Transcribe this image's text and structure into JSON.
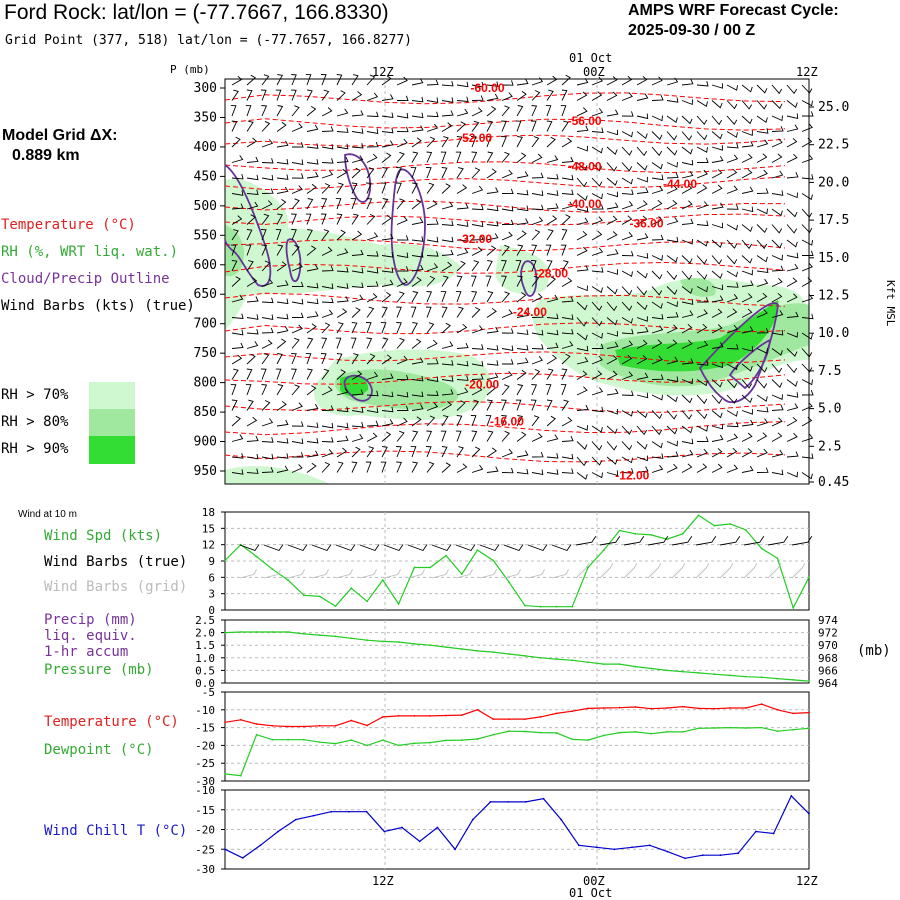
{
  "header": {
    "station_title": "Ford Rock:  lat/lon = (-77.7667, 166.8330)",
    "grid_point": "Grid Point (377, 518) lat/lon = (-77.7657, 166.8277)",
    "forecast_cycle_label": "AMPS WRF Forecast Cycle:",
    "forecast_cycle_value": "2025-09-30 / 00  Z"
  },
  "left_panel": {
    "model_grid_label": "Model Grid ΔX:",
    "model_grid_value": "0.889 km",
    "legend": {
      "temperature": "Temperature (°C)",
      "rh": "RH (%, WRT liq. wat.)",
      "cloud": "Cloud/Precip Outline",
      "wind_barbs": "Wind Barbs (kts) (true)"
    },
    "rh_key": [
      {
        "label": "RH > 70%",
        "color": "#d0f8d0"
      },
      {
        "label": "RH > 80%",
        "color": "#a0e8a0"
      },
      {
        "label": "RH > 90%",
        "color": "#33dd33"
      }
    ],
    "wind_10m_label": "Wind at 10 m",
    "wind_legend": {
      "spd": "Wind Spd (kts)",
      "barbs_true": "Wind Barbs (true)",
      "barbs_grid": "Wind Barbs (grid)"
    },
    "precip_legend": {
      "line1": "Precip (mm)",
      "line2": "liq. equiv.",
      "line3": "1-hr accum",
      "pressure": "Pressure (mb)"
    },
    "pressure_unit": "(mb)",
    "temp_legend": {
      "temperature": "Temperature (°C)",
      "dewpoint": "Dewpoint (°C)"
    },
    "windchill_legend": "Wind Chill T (°C)"
  },
  "colors": {
    "temperature": "#ff0000",
    "rh_line": "#22cc22",
    "cloud": "#663399",
    "wind_chill": "#0000cc",
    "left_green": "#33aa33",
    "left_purple": "#773399"
  },
  "time_axis": {
    "top_date": "01 Oct",
    "bottom_date": "01 Oct",
    "ticks": [
      "12Z",
      "00Z",
      "12Z"
    ]
  },
  "chart_data": [
    {
      "type": "area",
      "title": "Vertical cross-section",
      "ylabel": "P (mb)",
      "y2label": "Kft MSL",
      "pressure_ticks": [
        "300",
        "350",
        "400",
        "450",
        "500",
        "550",
        "600",
        "650",
        "700",
        "750",
        "800",
        "850",
        "900",
        "950"
      ],
      "kft_ticks": [
        "25.0",
        "22.5",
        "20.0",
        "17.5",
        "15.0",
        "12.5",
        "10.0",
        "7.5",
        "5.0",
        "2.5",
        "0.45"
      ],
      "isotherm_labels": [
        {
          "text": "-60.00",
          "hour": 17.8,
          "p": 300
        },
        {
          "text": "-56.00",
          "hour": 23.3,
          "p": 356
        },
        {
          "text": "-52.00",
          "hour": 17.1,
          "p": 385
        },
        {
          "text": "-48.00",
          "hour": 23.3,
          "p": 433
        },
        {
          "text": "-44.00",
          "hour": 28.7,
          "p": 463
        },
        {
          "text": "-40.00",
          "hour": 23.3,
          "p": 497
        },
        {
          "text": "-36.00",
          "hour": 26.8,
          "p": 530
        },
        {
          "text": "-32.00",
          "hour": 17.1,
          "p": 556
        },
        {
          "text": "-28.00",
          "hour": 21.4,
          "p": 615
        },
        {
          "text": "-24.00",
          "hour": 20.2,
          "p": 680
        },
        {
          "text": "-20.00",
          "hour": 17.5,
          "p": 803
        },
        {
          "text": "-16.00",
          "hour": 18.9,
          "p": 866
        },
        {
          "text": "-12.00",
          "hour": 26.0,
          "p": 958
        }
      ]
    },
    {
      "type": "line",
      "title": "Wind Spd (kts)",
      "ylim": [
        0,
        18
      ],
      "yticks": [
        "0",
        "3",
        "6",
        "9",
        "12",
        "15",
        "18"
      ],
      "series": [
        {
          "name": "Wind Spd",
          "values": [
            9.1,
            12,
            9.8,
            7.5,
            5.5,
            2.7,
            2.5,
            0.7,
            4,
            1.6,
            5.5,
            1.1,
            7.8,
            7.8,
            10,
            6.6,
            11,
            9.1,
            5.1,
            0.8,
            0.6,
            0.6,
            0.6,
            7.8,
            11,
            14.6,
            14,
            13.8,
            13,
            14,
            17.4,
            15.5,
            15.8,
            14.7,
            11.3,
            9.5,
            0.4,
            6
          ]
        }
      ]
    },
    {
      "type": "line",
      "title": "Precip / Pressure",
      "ylim": [
        0,
        2.5
      ],
      "yticks": [
        "0.0",
        "0.5",
        "1.0",
        "1.5",
        "2.0",
        "2.5"
      ],
      "y2ticks": [
        "974",
        "972",
        "970",
        "968",
        "966",
        "964"
      ],
      "series": [
        {
          "name": "Pressure (mb)",
          "values": [
            972,
            972.1,
            972.1,
            972.1,
            972.1,
            971.8,
            971.6,
            971.4,
            971.1,
            970.8,
            970.6,
            970.5,
            970.2,
            970,
            969.7,
            969.4,
            969.1,
            968.9,
            968.6,
            968.3,
            968,
            967.8,
            967.6,
            967.3,
            967,
            967,
            966.6,
            966.3,
            966,
            965.8,
            965.6,
            965.4,
            965.2,
            965,
            964.9,
            964.7,
            964.5,
            964.3
          ]
        }
      ]
    },
    {
      "type": "line",
      "title": "Temperature / Dewpoint",
      "ylim": [
        -30,
        -5
      ],
      "yticks": [
        "-5",
        "-10",
        "-15",
        "-20",
        "-25",
        "-30"
      ],
      "series": [
        {
          "name": "Temperature",
          "values": [
            -13.5,
            -12.8,
            -14,
            -14.5,
            -14.7,
            -14.7,
            -14.5,
            -14.5,
            -13,
            -14.4,
            -12,
            -11.7,
            -11.7,
            -11.7,
            -11.6,
            -11.5,
            -10,
            -12.6,
            -12.6,
            -12.6,
            -12,
            -11,
            -10.4,
            -9.6,
            -9.5,
            -9.4,
            -9.2,
            -9.7,
            -9.5,
            -9.1,
            -9.6,
            -9.7,
            -9.5,
            -9.5,
            -8.4,
            -10,
            -11,
            -10.8
          ]
        },
        {
          "name": "Dewpoint",
          "values": [
            -28,
            -28.5,
            -17,
            -18.4,
            -18.4,
            -18.4,
            -19.1,
            -19.5,
            -18.5,
            -20,
            -18.5,
            -20,
            -19.4,
            -19.2,
            -18.6,
            -18.5,
            -18.2,
            -17,
            -16,
            -16.1,
            -16.4,
            -16.5,
            -18.3,
            -18.5,
            -17.2,
            -16.4,
            -16.2,
            -16.7,
            -16.2,
            -16.2,
            -15.2,
            -15.1,
            -15,
            -15.1,
            -15,
            -16,
            -15.6,
            -15.2
          ]
        }
      ]
    },
    {
      "type": "line",
      "title": "Wind Chill T (°C)",
      "ylim": [
        -30,
        -10
      ],
      "yticks": [
        "-10",
        "-15",
        "-20",
        "-25",
        "-30"
      ],
      "series": [
        {
          "name": "Wind Chill",
          "values": [
            -25,
            -27.2,
            -24,
            -20.5,
            -17.5,
            -16.5,
            -15.5,
            -15.5,
            -15.5,
            -20.5,
            -19.5,
            -23,
            -19.5,
            -25,
            -17.5,
            -13,
            -13,
            -13,
            -12.2,
            -17.5,
            -24,
            -24.5,
            -25,
            -24.5,
            -24,
            -25.6,
            -27.3,
            -26.5,
            -26.5,
            -26,
            -20.5,
            -21,
            -11.5,
            -16
          ]
        }
      ]
    }
  ]
}
